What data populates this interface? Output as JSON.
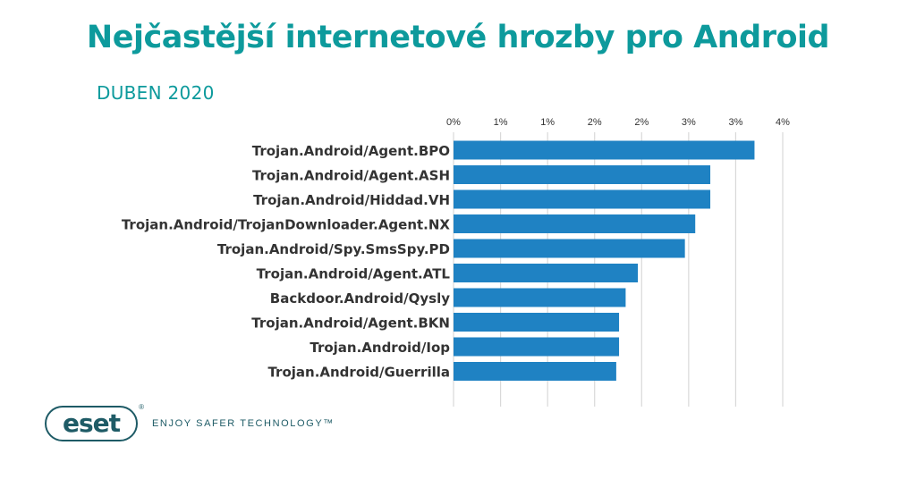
{
  "header": {
    "title": "Nejčastější internetové hrozby pro Android",
    "subtitle": "DUBEN 2020"
  },
  "footer": {
    "logo_text": "eset",
    "logo_mark": "®",
    "tagline": "ENJOY SAFER TECHNOLOGY™"
  },
  "colors": {
    "title": "#0d9a9c",
    "bar": "#1f82c3",
    "grid": "#d9d9d9",
    "brand": "#1e5b66"
  },
  "chart_data": {
    "type": "bar",
    "orientation": "horizontal",
    "categories": [
      "Trojan.Android/Agent.BPO",
      "Trojan.Android/Agent.ASH",
      "Trojan.Android/Hiddad.VH",
      "Trojan.Android/TrojanDownloader.Agent.NX",
      "Trojan.Android/Spy.SmsSpy.PD",
      "Trojan.Android/Agent.ATL",
      "Backdoor.Android/Qysly",
      "Trojan.Android/Agent.BKN",
      "Trojan.Android/Iop",
      "Trojan.Android/Guerrilla"
    ],
    "values": [
      3.2,
      2.73,
      2.73,
      2.57,
      2.46,
      1.96,
      1.83,
      1.76,
      1.76,
      1.73
    ],
    "xticks": [
      0,
      0.5,
      1,
      1.5,
      2,
      2.5,
      3,
      3.5
    ],
    "xtick_labels": [
      "0%",
      "1%",
      "1%",
      "2%",
      "2%",
      "3%",
      "3%",
      "4%"
    ],
    "xlim": [
      0,
      3.5
    ],
    "grid": true,
    "axis_position": "top",
    "xlabel": "",
    "ylabel": ""
  }
}
